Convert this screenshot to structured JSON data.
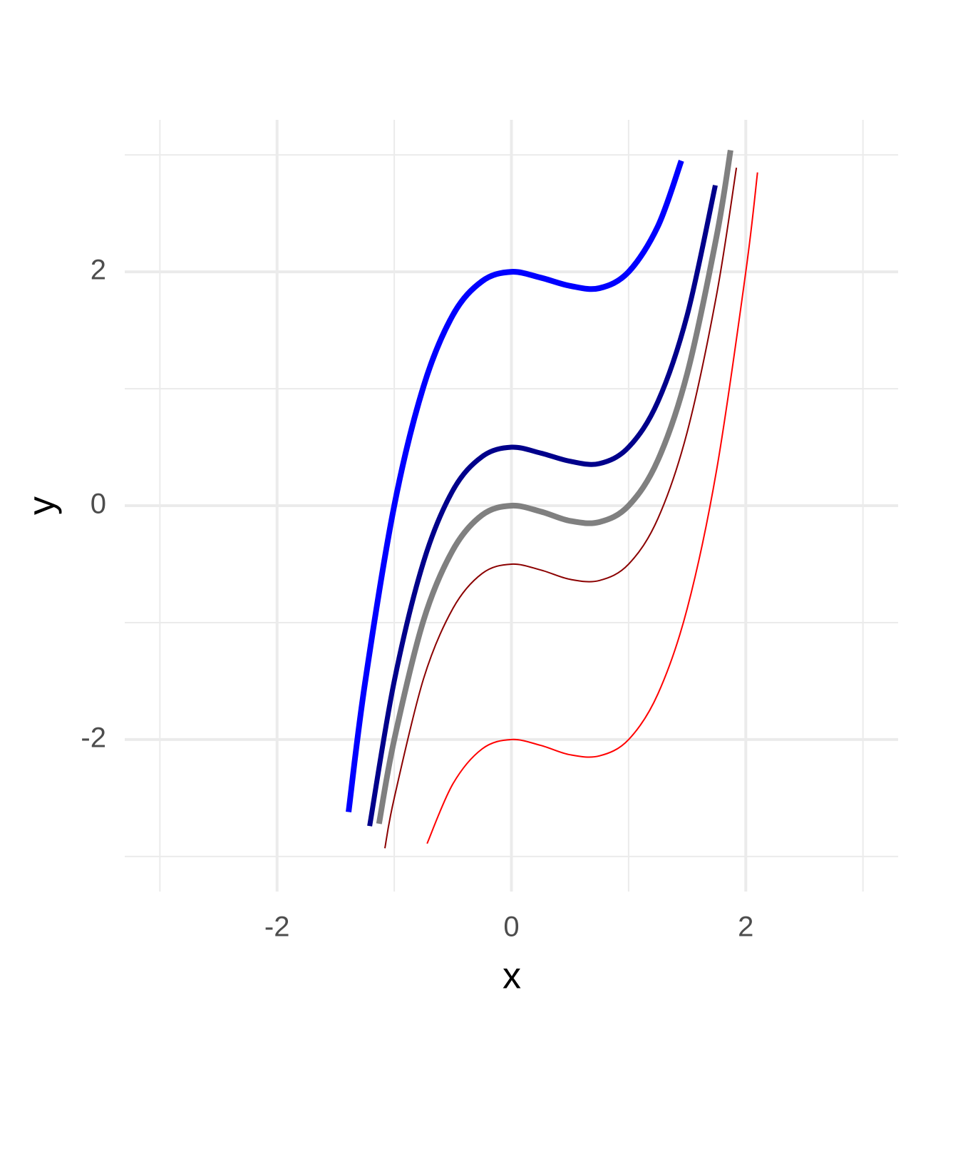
{
  "chart_data": {
    "type": "line",
    "x_label": "x",
    "y_label": "y",
    "xlim": [
      -3.3,
      3.3
    ],
    "ylim": [
      -3.3,
      3.3
    ],
    "xticks": [
      -2,
      0,
      2
    ],
    "yticks": [
      -2,
      0,
      2
    ],
    "minor_xticks": [
      -3,
      -1,
      1,
      3
    ],
    "minor_yticks": [
      -3,
      -1,
      1,
      3
    ],
    "grid": true,
    "series": [
      {
        "color": "#0000ff",
        "width": 8,
        "x": [
          -1.39,
          -1.25,
          -1,
          -0.75,
          -0.5,
          -0.25,
          0,
          0.25,
          0.5,
          0.75,
          1,
          1.25,
          1.45
        ],
        "values": [
          -2.62,
          -1.52,
          0,
          1.02,
          1.63,
          1.92,
          2,
          1.95,
          1.88,
          1.86,
          2,
          2.39,
          2.95
        ]
      },
      {
        "color": "#00008b",
        "width": 7,
        "x": [
          -1.21,
          -1,
          -0.75,
          -0.5,
          -0.25,
          0,
          0.25,
          0.5,
          0.75,
          1,
          1.25,
          1.5,
          1.74
        ],
        "values": [
          -2.74,
          -1.5,
          -0.48,
          0.13,
          0.42,
          0.5,
          0.45,
          0.38,
          0.36,
          0.5,
          0.89,
          1.63,
          2.74
        ]
      },
      {
        "color": "#808080",
        "width": 8,
        "x": [
          -1.13,
          -1,
          -0.75,
          -0.5,
          -0.25,
          0,
          0.25,
          0.5,
          0.75,
          1,
          1.25,
          1.5,
          1.75,
          1.87
        ],
        "values": [
          -2.72,
          -2,
          -0.98,
          -0.38,
          -0.08,
          0,
          -0.05,
          -0.13,
          -0.14,
          0,
          0.39,
          1.13,
          2.3,
          3.04
        ]
      },
      {
        "color": "#8b0000",
        "width": 2,
        "x": [
          -1.08,
          -1,
          -0.75,
          -0.5,
          -0.25,
          0,
          0.25,
          0.5,
          0.75,
          1,
          1.25,
          1.5,
          1.75,
          1.92
        ],
        "values": [
          -2.93,
          -2.5,
          -1.48,
          -0.88,
          -0.58,
          -0.5,
          -0.55,
          -0.63,
          -0.64,
          -0.5,
          -0.11,
          0.63,
          1.8,
          2.89
        ]
      },
      {
        "color": "#ff0000",
        "width": 2,
        "x": [
          -0.72,
          -0.5,
          -0.25,
          0,
          0.25,
          0.5,
          0.75,
          1,
          1.25,
          1.5,
          1.75,
          2,
          2.1
        ],
        "values": [
          -2.89,
          -2.38,
          -2.08,
          -2,
          -2.05,
          -2.13,
          -2.14,
          -2,
          -1.61,
          -0.88,
          0.3,
          2,
          2.85
        ]
      }
    ]
  }
}
